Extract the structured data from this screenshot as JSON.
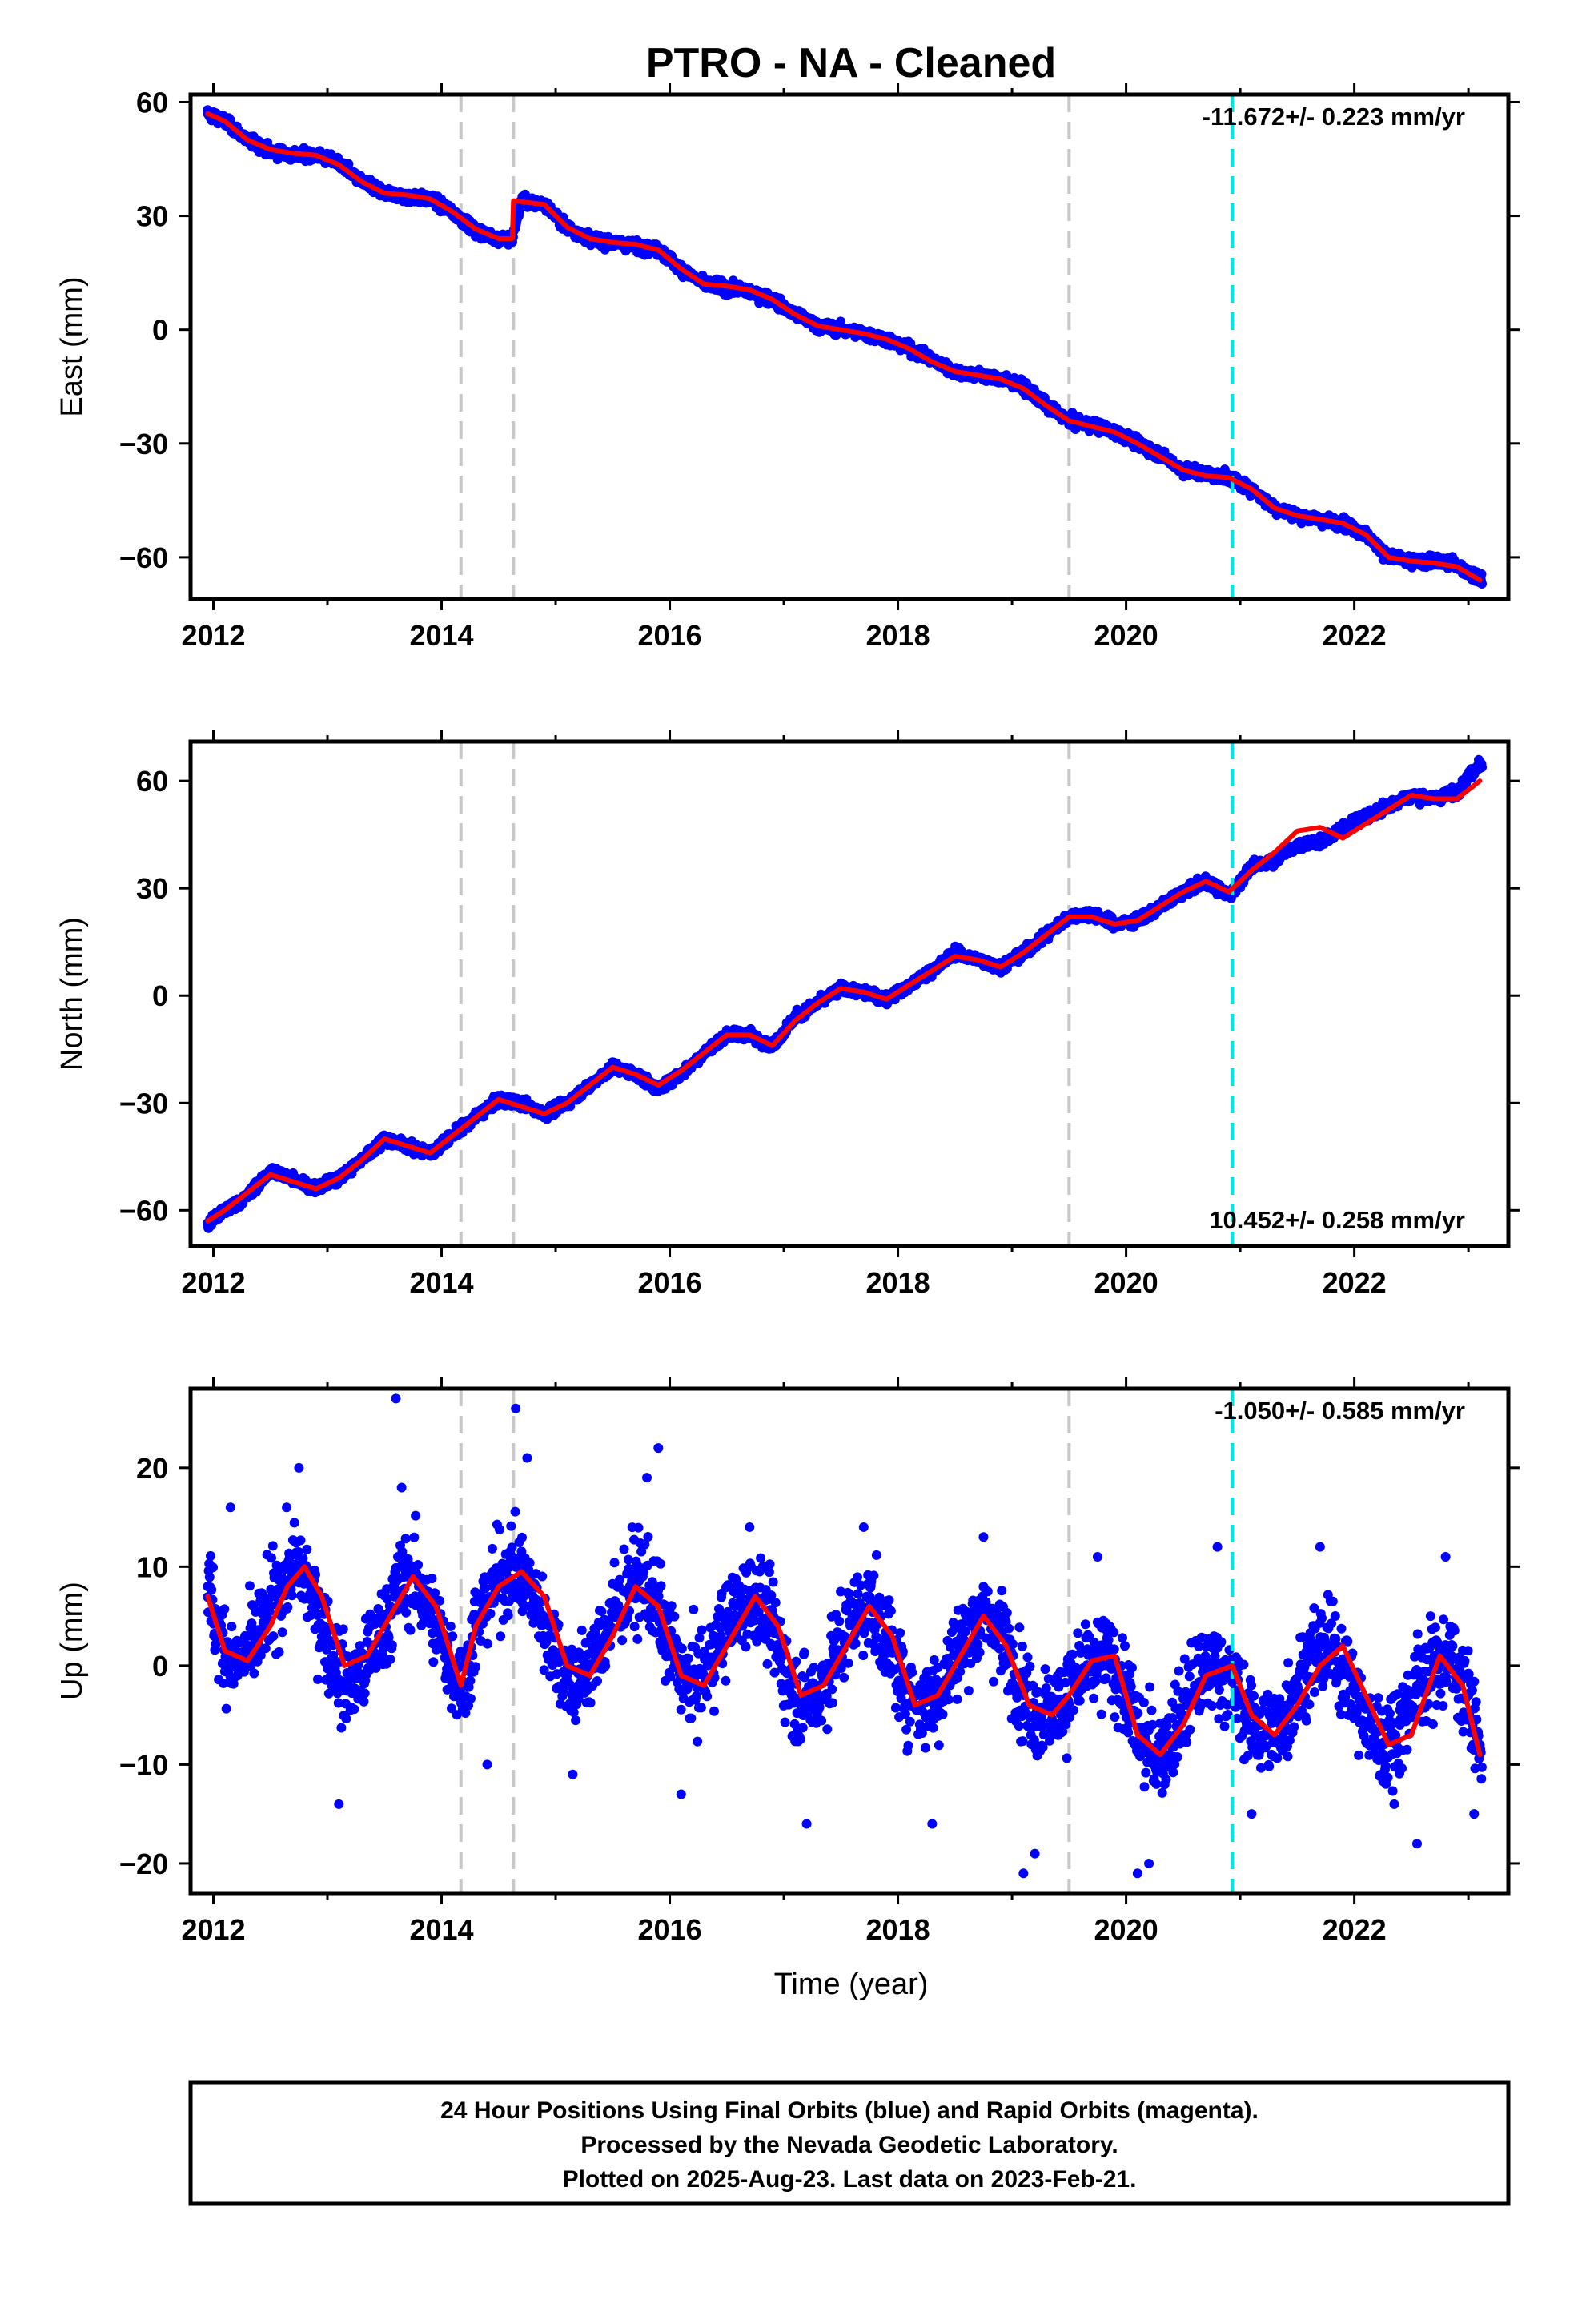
{
  "title": "PTRO  - NA - Cleaned",
  "colors": {
    "data_points": "#0000ff",
    "model_fit": "#ff0000",
    "equipment_change": "#c8c8c8",
    "earthquake": "#00e5e5",
    "frame": "#000000"
  },
  "xlabel": "Time (year)",
  "xticks": [
    "2012",
    "2014",
    "2016",
    "2018",
    "2020",
    "2022"
  ],
  "footer": {
    "line1": "24 Hour Positions Using Final Orbits (blue) and Rapid Orbits (magenta).",
    "line2": "Processed by the Nevada Geodetic Laboratory.",
    "line3": "Plotted on 2025-Aug-23. Last data on 2023-Feb-21."
  },
  "chart_data": [
    {
      "type": "scatter",
      "ylabel": "East (mm)",
      "rate_label": "-11.672+/- 0.223 mm/yr",
      "xlim": [
        2011.8,
        2023.35
      ],
      "ylim": [
        -71,
        62
      ],
      "yticks": [
        "60",
        "30",
        "0",
        "−30",
        "−60"
      ],
      "ytick_values": [
        60,
        30,
        0,
        -30,
        -60
      ],
      "grey_lines": [
        2014.17,
        2014.63,
        2019.5
      ],
      "cyan_lines": [
        2020.93
      ],
      "series": [
        {
          "name": "Final Orbits",
          "x": [
            2011.95,
            2012.1,
            2012.3,
            2012.5,
            2012.7,
            2012.9,
            2013.1,
            2013.3,
            2013.5,
            2013.7,
            2013.9,
            2014.1,
            2014.3,
            2014.5,
            2014.62,
            2014.7,
            2014.9,
            2015.1,
            2015.3,
            2015.5,
            2015.7,
            2015.9,
            2016.1,
            2016.3,
            2016.5,
            2016.7,
            2016.9,
            2017.1,
            2017.3,
            2017.5,
            2017.7,
            2017.9,
            2018.1,
            2018.3,
            2018.5,
            2018.7,
            2018.9,
            2019.1,
            2019.3,
            2019.5,
            2019.7,
            2019.9,
            2020.1,
            2020.3,
            2020.5,
            2020.7,
            2020.9,
            2021.1,
            2021.3,
            2021.5,
            2021.7,
            2021.9,
            2022.1,
            2022.3,
            2022.5,
            2022.7,
            2022.9,
            2023.1
          ],
          "y": [
            57,
            55,
            50,
            47,
            46,
            46,
            44,
            39,
            36,
            35,
            34.5,
            31,
            26,
            24,
            24,
            34,
            33,
            27,
            24,
            23,
            22,
            21,
            16,
            12,
            11,
            10,
            8,
            4,
            1,
            0,
            -1,
            -2.5,
            -5,
            -8,
            -11,
            -12,
            -13,
            -15,
            -20,
            -24,
            -25,
            -27,
            -30,
            -33,
            -37,
            -38,
            -39,
            -42,
            -47,
            -49,
            -50,
            -51,
            -54,
            -60,
            -61,
            -61,
            -62,
            -66
          ]
        },
        {
          "name": "Model fit",
          "x": [
            2011.95,
            2012.1,
            2012.3,
            2012.5,
            2012.7,
            2012.9,
            2013.1,
            2013.3,
            2013.5,
            2013.7,
            2013.9,
            2014.1,
            2014.3,
            2014.5,
            2014.62,
            2014.63,
            2014.9,
            2015.1,
            2015.3,
            2015.5,
            2015.7,
            2015.9,
            2016.1,
            2016.3,
            2016.5,
            2016.7,
            2016.9,
            2017.1,
            2017.3,
            2017.5,
            2017.7,
            2017.9,
            2018.1,
            2018.3,
            2018.5,
            2018.7,
            2018.9,
            2019.1,
            2019.3,
            2019.5,
            2019.7,
            2019.9,
            2020.1,
            2020.3,
            2020.5,
            2020.7,
            2020.9,
            2021.1,
            2021.3,
            2021.5,
            2021.7,
            2021.9,
            2022.1,
            2022.3,
            2022.5,
            2022.7,
            2022.9,
            2023.1
          ],
          "y": [
            57,
            55,
            50,
            47.5,
            46.5,
            46,
            43.5,
            39,
            36,
            35.5,
            34.5,
            31,
            26.5,
            24,
            24,
            34,
            33,
            27,
            24,
            23,
            22.5,
            21,
            16,
            12,
            11.5,
            10.5,
            8,
            4,
            1,
            0,
            -1,
            -2.5,
            -5,
            -8.5,
            -11,
            -12,
            -13,
            -15.5,
            -20,
            -24,
            -25.5,
            -27,
            -30,
            -33.5,
            -37,
            -38.5,
            -39,
            -42,
            -47,
            -49,
            -50,
            -51,
            -54,
            -60,
            -61,
            -61.5,
            -62.5,
            -66
          ]
        }
      ]
    },
    {
      "type": "scatter",
      "ylabel": "North (mm)",
      "rate_label": "10.452+/- 0.258 mm/yr",
      "xlim": [
        2011.8,
        2023.35
      ],
      "ylim": [
        -70,
        71
      ],
      "yticks": [
        "60",
        "30",
        "0",
        "−30",
        "−60"
      ],
      "ytick_values": [
        60,
        30,
        0,
        -30,
        -60
      ],
      "grey_lines": [
        2014.17,
        2014.63,
        2019.5
      ],
      "cyan_lines": [
        2020.93
      ],
      "series": [
        {
          "name": "Final Orbits",
          "x": [
            2011.95,
            2012.1,
            2012.3,
            2012.5,
            2012.7,
            2012.9,
            2013.1,
            2013.3,
            2013.5,
            2013.7,
            2013.9,
            2014.1,
            2014.3,
            2014.5,
            2014.7,
            2014.9,
            2015.1,
            2015.3,
            2015.5,
            2015.7,
            2015.9,
            2016.1,
            2016.3,
            2016.5,
            2016.7,
            2016.9,
            2017.1,
            2017.3,
            2017.5,
            2017.7,
            2017.9,
            2018.1,
            2018.3,
            2018.5,
            2018.7,
            2018.9,
            2019.1,
            2019.3,
            2019.5,
            2019.7,
            2019.9,
            2020.1,
            2020.3,
            2020.5,
            2020.7,
            2020.9,
            2021.1,
            2021.3,
            2021.5,
            2021.7,
            2021.9,
            2022.1,
            2022.3,
            2022.5,
            2022.7,
            2022.9,
            2023.1
          ],
          "y": [
            -64,
            -60,
            -56,
            -49,
            -51,
            -54,
            -51,
            -46,
            -40,
            -42,
            -44,
            -39,
            -34,
            -29,
            -30,
            -33,
            -30,
            -25,
            -20,
            -22,
            -26,
            -22,
            -16,
            -11,
            -11,
            -14,
            -6,
            -2,
            2,
            1,
            -1,
            3,
            7,
            12,
            10,
            8,
            12,
            17,
            22,
            23,
            20,
            21,
            25,
            29,
            32,
            28,
            36,
            38,
            42,
            43,
            47,
            50,
            53,
            56,
            55,
            57,
            65
          ]
        },
        {
          "name": "Model fit",
          "x": [
            2011.95,
            2012.1,
            2012.3,
            2012.5,
            2012.7,
            2012.9,
            2013.1,
            2013.3,
            2013.5,
            2013.7,
            2013.9,
            2014.1,
            2014.3,
            2014.5,
            2014.7,
            2014.9,
            2015.1,
            2015.3,
            2015.5,
            2015.7,
            2015.9,
            2016.1,
            2016.3,
            2016.5,
            2016.7,
            2016.9,
            2017.1,
            2017.3,
            2017.5,
            2017.7,
            2017.9,
            2018.1,
            2018.3,
            2018.5,
            2018.7,
            2018.9,
            2019.1,
            2019.3,
            2019.5,
            2019.7,
            2019.9,
            2020.1,
            2020.3,
            2020.5,
            2020.7,
            2020.9,
            2021.1,
            2021.3,
            2021.5,
            2021.7,
            2021.9,
            2022.1,
            2022.3,
            2022.5,
            2022.7,
            2022.9,
            2023.1
          ],
          "y": [
            -63,
            -60,
            -55,
            -50,
            -52,
            -54,
            -51,
            -46,
            -40,
            -42,
            -44,
            -39,
            -34,
            -29,
            -31,
            -33,
            -30,
            -25,
            -20,
            -22,
            -25,
            -21,
            -16,
            -11,
            -11,
            -14,
            -7,
            -2,
            2,
            1,
            -1,
            3,
            7,
            11,
            10,
            8,
            12,
            17,
            22,
            22,
            20,
            21,
            25,
            29,
            32,
            29,
            35,
            40,
            46,
            47,
            44,
            48,
            52,
            56,
            55,
            55,
            60
          ]
        }
      ]
    },
    {
      "type": "scatter",
      "ylabel": "Up (mm)",
      "rate_label": "-1.050+/- 0.585 mm/yr",
      "xlim": [
        2011.8,
        2023.35
      ],
      "ylim": [
        -23,
        28
      ],
      "yticks": [
        "20",
        "10",
        "0",
        "−10",
        "−20"
      ],
      "ytick_values": [
        20,
        10,
        0,
        -10,
        -20
      ],
      "grey_lines": [
        2014.17,
        2014.63,
        2019.5
      ],
      "cyan_lines": [
        2020.93
      ],
      "series": [
        {
          "name": "Final Orbits",
          "x": [
            2011.95,
            2012.05,
            2012.2,
            2012.35,
            2012.5,
            2012.6,
            2012.7,
            2012.8,
            2012.9,
            2013.05,
            2013.15,
            2013.3,
            2013.45,
            2013.6,
            2013.7,
            2013.8,
            2013.95,
            2014.1,
            2014.2,
            2014.3,
            2014.45,
            2014.6,
            2014.7,
            2014.8,
            2014.95,
            2015.1,
            2015.2,
            2015.35,
            2015.5,
            2015.65,
            2015.75,
            2015.85,
            2016.0,
            2016.15,
            2016.3,
            2016.45,
            2016.6,
            2016.75,
            2016.9,
            2017.05,
            2017.15,
            2017.3,
            2017.45,
            2017.6,
            2017.75,
            2017.9,
            2018.05,
            2018.2,
            2018.35,
            2018.5,
            2018.65,
            2018.8,
            2018.95,
            2019.1,
            2019.25,
            2019.4,
            2019.55,
            2019.7,
            2019.85,
            2020.0,
            2020.15,
            2020.3,
            2020.45,
            2020.6,
            2020.75,
            2020.9,
            2021.05,
            2021.2,
            2021.35,
            2021.5,
            2021.65,
            2021.8,
            2021.95,
            2022.1,
            2022.25,
            2022.4,
            2022.55,
            2022.7,
            2022.85,
            2023.0,
            2023.1,
            2012.15,
            2012.75,
            2013.1,
            2013.65,
            2014.75,
            2014.4,
            2015.8,
            2015.15,
            2016.1,
            2016.7,
            2017.2,
            2017.7,
            2018.3,
            2018.75,
            2019.2,
            2019.75,
            2020.2,
            2020.8,
            2021.1,
            2021.7,
            2022.35,
            2022.8,
            2023.05,
            2013.6,
            2014.65,
            2015.9,
            2019.1,
            2020.1,
            2022.55
          ],
          "y": [
            8,
            3,
            0,
            2,
            6,
            8,
            10,
            9,
            6,
            1,
            -2,
            -1,
            3,
            7,
            9,
            8,
            4,
            0,
            -2,
            4,
            8,
            10,
            9,
            7,
            3,
            -1,
            -2,
            1,
            5,
            8,
            9,
            7,
            2,
            -2,
            -1,
            3,
            6,
            7,
            4,
            -2,
            -4,
            -3,
            1,
            5,
            6,
            3,
            -2,
            -4,
            -3,
            1,
            4,
            5,
            2,
            -3,
            -5,
            -4,
            -2,
            0,
            1,
            -3,
            -8,
            -9,
            -6,
            -2,
            0,
            -1,
            -5,
            -7,
            -6,
            -2,
            1,
            2,
            -1,
            -6,
            -8,
            -6,
            -2,
            0,
            1,
            -3,
            -9,
            16,
            20,
            -14,
            18,
            21,
            -10,
            19,
            -11,
            -13,
            14,
            -16,
            14,
            -16,
            13,
            -19,
            11,
            -20,
            12,
            -15,
            12,
            -14,
            11,
            -15,
            27,
            26,
            22,
            -21,
            -21,
            -18
          ]
        },
        {
          "name": "Model fit",
          "x": [
            2011.95,
            2012.1,
            2012.3,
            2012.5,
            2012.65,
            2012.8,
            2012.95,
            2013.15,
            2013.35,
            2013.55,
            2013.75,
            2013.95,
            2014.17,
            2014.3,
            2014.5,
            2014.7,
            2014.9,
            2015.1,
            2015.3,
            2015.5,
            2015.7,
            2015.9,
            2016.1,
            2016.3,
            2016.5,
            2016.75,
            2016.95,
            2017.15,
            2017.35,
            2017.55,
            2017.75,
            2017.95,
            2018.15,
            2018.35,
            2018.55,
            2018.75,
            2018.95,
            2019.15,
            2019.35,
            2019.5,
            2019.7,
            2019.9,
            2020.1,
            2020.3,
            2020.5,
            2020.7,
            2020.93,
            2021.1,
            2021.3,
            2021.5,
            2021.7,
            2021.9,
            2022.1,
            2022.3,
            2022.5,
            2022.75,
            2022.95,
            2023.1
          ],
          "y": [
            7,
            1.5,
            0.5,
            4,
            8,
            10,
            7,
            0,
            1,
            5,
            9,
            6,
            -2,
            4,
            8,
            9.5,
            7,
            0,
            -1,
            3,
            8,
            6,
            -1,
            -2,
            2,
            7,
            4,
            -3,
            -2,
            2,
            6,
            3,
            -4,
            -3,
            1,
            5,
            2,
            -4,
            -5,
            -3,
            0.5,
            1,
            -7,
            -9,
            -6,
            -1,
            0,
            -5,
            -7,
            -4,
            0,
            2,
            -3,
            -8,
            -7,
            1,
            -2,
            -9
          ]
        }
      ]
    }
  ]
}
